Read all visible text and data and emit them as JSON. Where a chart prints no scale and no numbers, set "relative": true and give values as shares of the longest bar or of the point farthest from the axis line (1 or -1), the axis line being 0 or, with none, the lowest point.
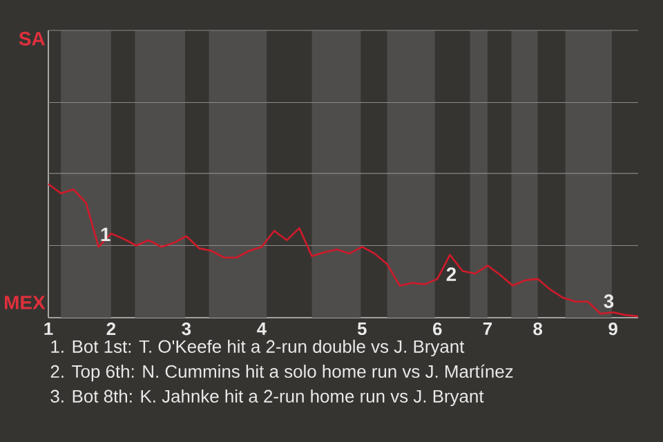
{
  "chart_data": {
    "type": "line",
    "relative": true,
    "categories": [
      "1",
      null,
      null,
      null,
      null,
      "2",
      null,
      null,
      null,
      null,
      null,
      "3",
      null,
      null,
      null,
      null,
      null,
      "4",
      null,
      null,
      null,
      null,
      null,
      null,
      null,
      "5",
      null,
      null,
      null,
      null,
      null,
      "6",
      null,
      null,
      null,
      "7",
      null,
      null,
      null,
      "8",
      null,
      null,
      null,
      null,
      null,
      "9",
      null,
      null
    ],
    "series": [
      {
        "color": "#d11a2a",
        "values": [
          1,
          0.93,
          0.96,
          0.86,
          0.53,
          0.63,
          0.59,
          0.54,
          0.58,
          0.53,
          0.56,
          0.61,
          0.52,
          0.5,
          0.45,
          0.45,
          0.5,
          0.53,
          0.65,
          0.58,
          0.67,
          0.46,
          0.49,
          0.51,
          0.48,
          0.53,
          0.48,
          0.4,
          0.24,
          0.26,
          0.25,
          0.29,
          0.47,
          0.35,
          0.33,
          0.39,
          0.32,
          0.24,
          0.28,
          0.29,
          0.21,
          0.15,
          0.12,
          0.12,
          0.03,
          0.04,
          0.02,
          0.01
        ]
      }
    ],
    "ref_lines": [
      {
        "axis": "y",
        "value": 0.54,
        "color": "#8a8a8a"
      },
      {
        "axis": "y",
        "value": 1.08,
        "color": "#8a8a8a"
      },
      {
        "axis": "y",
        "value": 1.61,
        "color": "#8a8a8a"
      },
      {
        "axis": "y",
        "value": 2.15,
        "color": "#8a8a8a"
      }
    ],
    "annotations": [
      "SA",
      "MEX",
      {
        "text": "1",
        "y": 0.53
      },
      {
        "text": "2",
        "y": 0.47
      },
      {
        "text": "3",
        "y": 0.03
      },
      "1. Bot 1st: T. O'Keefe hit a 2-run double vs J. Bryant",
      "2. Top 6th: N. Cummins hit a solo home run vs J. Martínez",
      "3. Bot 8th: K. Jahnke hit a 2-run home run vs J. Bryant"
    ]
  }
}
